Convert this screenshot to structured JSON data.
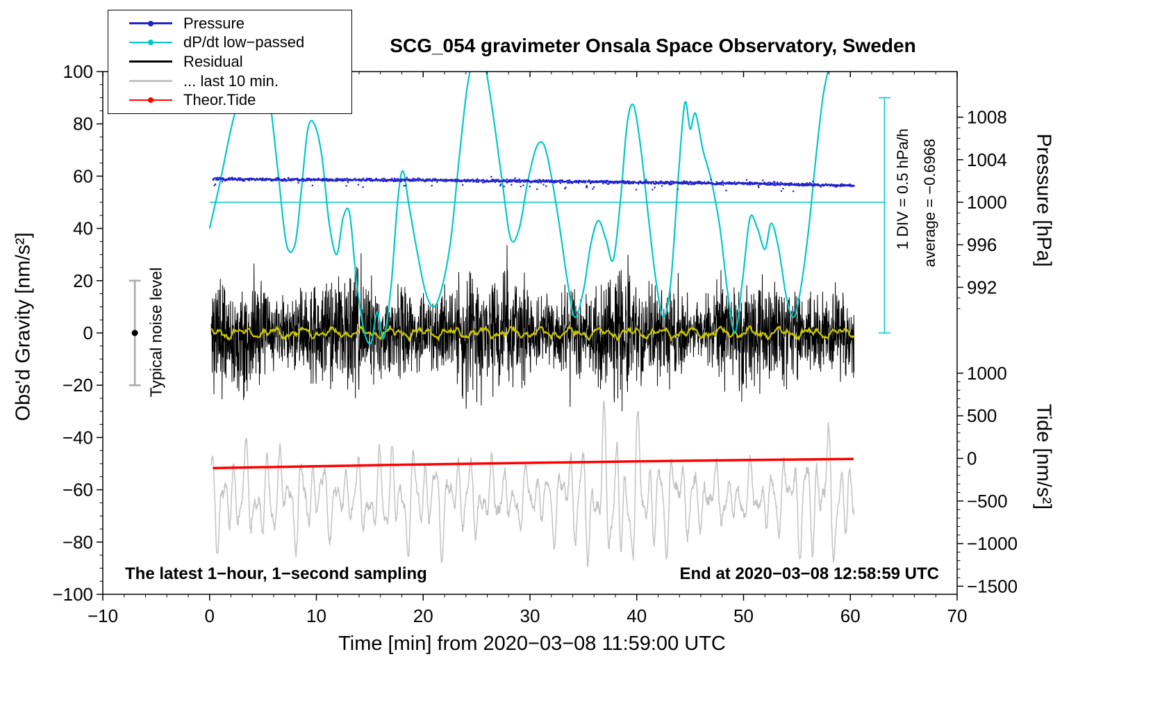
{
  "title": "SCG_054 gravimeter Onsala Space Observatory, Sweden",
  "legend": {
    "items": [
      {
        "label": "Pressure",
        "color": "#2222cc",
        "marker": "line-dot"
      },
      {
        "label": "dP/dt low−passed",
        "color": "#00c8c8",
        "marker": "line-dot"
      },
      {
        "label": "Residual",
        "color": "#000000",
        "marker": "line"
      },
      {
        "label": "... last 10 min.",
        "color": "#c2c2c2",
        "marker": "line"
      },
      {
        "label": "Theor.Tide",
        "color": "#ff0000",
        "marker": "line-dot"
      }
    ]
  },
  "captions": {
    "bottom_left": "The latest 1−hour, 1−second sampling",
    "bottom_right": "End at 2020−03−08 12:58:59 UTC"
  },
  "annotations": {
    "div_scale": "1 DIV = 0.5 hPa/h",
    "average": "average = −0.6968",
    "noise_label": "Typical noise level"
  },
  "chart_data": {
    "type": "mixed-line-scatter",
    "title": "SCG_054 gravimeter Onsala Space Observatory, Sweden",
    "axes": {
      "x": {
        "label": "Time [min] from 2020−03−08 11:59:00 UTC",
        "min": -10,
        "max": 70,
        "minor_step": 2,
        "major": [
          {
            "v": -10,
            "t": "−10"
          },
          {
            "v": 0,
            "t": "0"
          },
          {
            "v": 10,
            "t": "10"
          },
          {
            "v": 20,
            "t": "20"
          },
          {
            "v": 30,
            "t": "30"
          },
          {
            "v": 40,
            "t": "40"
          },
          {
            "v": 50,
            "t": "50"
          },
          {
            "v": 60,
            "t": "60"
          },
          {
            "v": 70,
            "t": "70"
          }
        ]
      },
      "y_left": {
        "label": "Obs'd Gravity [nm/s²]",
        "min": -100,
        "max": 100,
        "minor_step": 5,
        "major": [
          {
            "v": -100,
            "t": "−100"
          },
          {
            "v": -80,
            "t": "−80"
          },
          {
            "v": -60,
            "t": "−60"
          },
          {
            "v": -40,
            "t": "−40"
          },
          {
            "v": -20,
            "t": "−20"
          },
          {
            "v": 0,
            "t": "0"
          },
          {
            "v": 20,
            "t": "20"
          },
          {
            "v": 40,
            "t": "40"
          },
          {
            "v": 60,
            "t": "60"
          },
          {
            "v": 80,
            "t": "80"
          },
          {
            "v": 100,
            "t": "100"
          }
        ]
      },
      "y_pressure": {
        "label": "Pressure [hPa]",
        "map": {
          "ref_hpa": 1000,
          "ref_y": 50,
          "per_hpa": 4.07
        },
        "minor_range": [
          990,
          1009
        ],
        "minor_step": 1,
        "major": [
          {
            "v": 1008,
            "t": "1008"
          },
          {
            "v": 1004,
            "t": "1004"
          },
          {
            "v": 1000,
            "t": "1000"
          },
          {
            "v": 996,
            "t": "996"
          },
          {
            "v": 992,
            "t": "992"
          }
        ]
      },
      "y_tide": {
        "label": "Tide [nm/s²]",
        "map": {
          "ref_tide": 0,
          "ref_y": -48,
          "per_unit": 0.0326
        },
        "minor_range": [
          -1500,
          1000
        ],
        "minor_step": 100,
        "major": [
          {
            "v": 1000,
            "t": "1000"
          },
          {
            "v": 500,
            "t": "500"
          },
          {
            "v": 0,
            "t": "0"
          },
          {
            "v": -500,
            "t": "−500"
          },
          {
            "v": -1000,
            "t": "−1000"
          },
          {
            "v": -1500,
            "t": "−1500"
          }
        ]
      }
    },
    "reference_marks": {
      "dpdt_zero_line": {
        "y": 50,
        "x_range": [
          0,
          63.2
        ],
        "color": "#00c8c8",
        "width": 1.4
      },
      "dpdt_scale_bar": {
        "x": 63.2,
        "y_range": [
          0,
          90
        ],
        "cap_halfwidth": 0.55,
        "color": "#00c8c8",
        "width": 1.6
      },
      "noise_bar": {
        "x": -7,
        "y_range": [
          -20,
          20
        ],
        "cap_halfwidth": 0.55,
        "color": "#a9a9a9",
        "width": 2.5,
        "dot_y": 0,
        "dot_r": 4.5,
        "dot_color": "#000000"
      }
    },
    "series": [
      {
        "id": "last10",
        "name": "... last 10 min.",
        "type": "osc-line",
        "color": "#c2c2c2",
        "width": 1.5,
        "seed": 7,
        "n": 1600,
        "x_range": [
          0.15,
          60.35
        ],
        "base": -63,
        "noise": 2,
        "components": [
          [
            8,
            1.05,
            0.3
          ],
          [
            5,
            1.75,
            1.7
          ],
          [
            4,
            0.62,
            4.1
          ],
          [
            3,
            3.4,
            2.2
          ]
        ],
        "env_sin": [
          19,
          0.25,
          1.0
        ],
        "boosts": [
          [
            37.5,
            4.5,
            0.85
          ],
          [
            57,
            2.5,
            0.5
          ],
          [
            8.5,
            3.5,
            0.35
          ],
          [
            17,
            2,
            0.3
          ]
        ]
      },
      {
        "id": "tide",
        "name": "Theor.Tide",
        "type": "smooth-line",
        "color": "#ff0000",
        "width": 3.5,
        "points": [
          [
            0.3,
            -51.7
          ],
          [
            10,
            -51.0
          ],
          [
            20,
            -50.3
          ],
          [
            30,
            -49.7
          ],
          [
            40,
            -49.15
          ],
          [
            50,
            -48.65
          ],
          [
            60.3,
            -48.2
          ]
        ]
      },
      {
        "id": "residual",
        "name": "Residual",
        "type": "noise-line",
        "color": "#000000",
        "width": 1,
        "seed": 11,
        "n": 2600,
        "x_range": [
          0.15,
          60.35
        ],
        "amp": 18,
        "env": [
          [
            4,
            0.5,
            1
          ],
          [
            2.5,
            1.3,
            2
          ]
        ],
        "spike_prob": 0.005,
        "spike_gain": 1.9,
        "clip": 42
      },
      {
        "id": "resid_lp",
        "name": "Residual low-passed",
        "type": "osc-line",
        "color": "#c8c800",
        "width": 2.2,
        "seed": 21,
        "n": 900,
        "x_range": [
          0.15,
          60.35
        ],
        "base": 0,
        "noise": 0.6,
        "components": [
          [
            1.2,
            2.8,
            1.0
          ],
          [
            0.8,
            1.3,
            2.5
          ],
          [
            0.5,
            0.7,
            0.2
          ]
        ]
      },
      {
        "id": "dpdt",
        "name": "dP/dt low−passed",
        "type": "smooth-line",
        "color": "#00c8c8",
        "width": 2.2,
        "points": [
          [
            0,
            40
          ],
          [
            1,
            58
          ],
          [
            2,
            78
          ],
          [
            3,
            93
          ],
          [
            4,
            101
          ],
          [
            4.8,
            103
          ],
          [
            5.6,
            90
          ],
          [
            6.4,
            62
          ],
          [
            7.2,
            34
          ],
          [
            8,
            34
          ],
          [
            8.6,
            55
          ],
          [
            9.2,
            78
          ],
          [
            9.8,
            80
          ],
          [
            10.5,
            68
          ],
          [
            11.2,
            42
          ],
          [
            11.9,
            30
          ],
          [
            12.5,
            44
          ],
          [
            13.1,
            46
          ],
          [
            13.7,
            22
          ],
          [
            14.4,
            2
          ],
          [
            15.1,
            -4
          ],
          [
            15.7,
            8
          ],
          [
            16.3,
            -2
          ],
          [
            17,
            18
          ],
          [
            17.6,
            50
          ],
          [
            18.1,
            62
          ],
          [
            18.7,
            48
          ],
          [
            19.4,
            32
          ],
          [
            20.2,
            16
          ],
          [
            21,
            10
          ],
          [
            21.8,
            18
          ],
          [
            22.6,
            36
          ],
          [
            23.4,
            68
          ],
          [
            24.2,
            96
          ],
          [
            25,
            107
          ],
          [
            25.8,
            102
          ],
          [
            26.6,
            82
          ],
          [
            27.4,
            58
          ],
          [
            28.2,
            36
          ],
          [
            29,
            40
          ],
          [
            29.8,
            58
          ],
          [
            30.6,
            71
          ],
          [
            31.3,
            72
          ],
          [
            32,
            60
          ],
          [
            32.8,
            40
          ],
          [
            33.5,
            20
          ],
          [
            34.2,
            6
          ],
          [
            35,
            16
          ],
          [
            35.7,
            34
          ],
          [
            36.4,
            43
          ],
          [
            37.1,
            36
          ],
          [
            37.8,
            28
          ],
          [
            38.5,
            52
          ],
          [
            39.1,
            80
          ],
          [
            39.7,
            87
          ],
          [
            40.4,
            70
          ],
          [
            41.1,
            44
          ],
          [
            41.8,
            20
          ],
          [
            42.5,
            6
          ],
          [
            43.2,
            20
          ],
          [
            43.9,
            60
          ],
          [
            44.5,
            88
          ],
          [
            45,
            78
          ],
          [
            45.5,
            84
          ],
          [
            46.2,
            70
          ],
          [
            47,
            58
          ],
          [
            47.8,
            40
          ],
          [
            48.5,
            16
          ],
          [
            49.2,
            0
          ],
          [
            49.9,
            20
          ],
          [
            50.6,
            44
          ],
          [
            51.3,
            40
          ],
          [
            52,
            32
          ],
          [
            52.6,
            42
          ],
          [
            53.3,
            32
          ],
          [
            54,
            14
          ],
          [
            54.7,
            6
          ],
          [
            55.4,
            18
          ],
          [
            56.1,
            40
          ],
          [
            56.8,
            68
          ],
          [
            57.5,
            92
          ],
          [
            58.2,
            104
          ],
          [
            59,
            110
          ],
          [
            60.3,
            114
          ]
        ]
      },
      {
        "id": "pressure",
        "name": "Pressure",
        "type": "scatter",
        "color": "#2222cc",
        "seed": 3,
        "n": 1500,
        "x_range": [
          0.3,
          60.35
        ],
        "r": 1.25,
        "sigma": 0.55,
        "trend": [
          [
            0,
            58.9
          ],
          [
            10,
            58.6
          ],
          [
            20,
            58.5
          ],
          [
            30,
            58.1
          ],
          [
            40,
            57.6
          ],
          [
            50,
            57.2
          ],
          [
            60.35,
            56.4
          ]
        ]
      }
    ]
  }
}
